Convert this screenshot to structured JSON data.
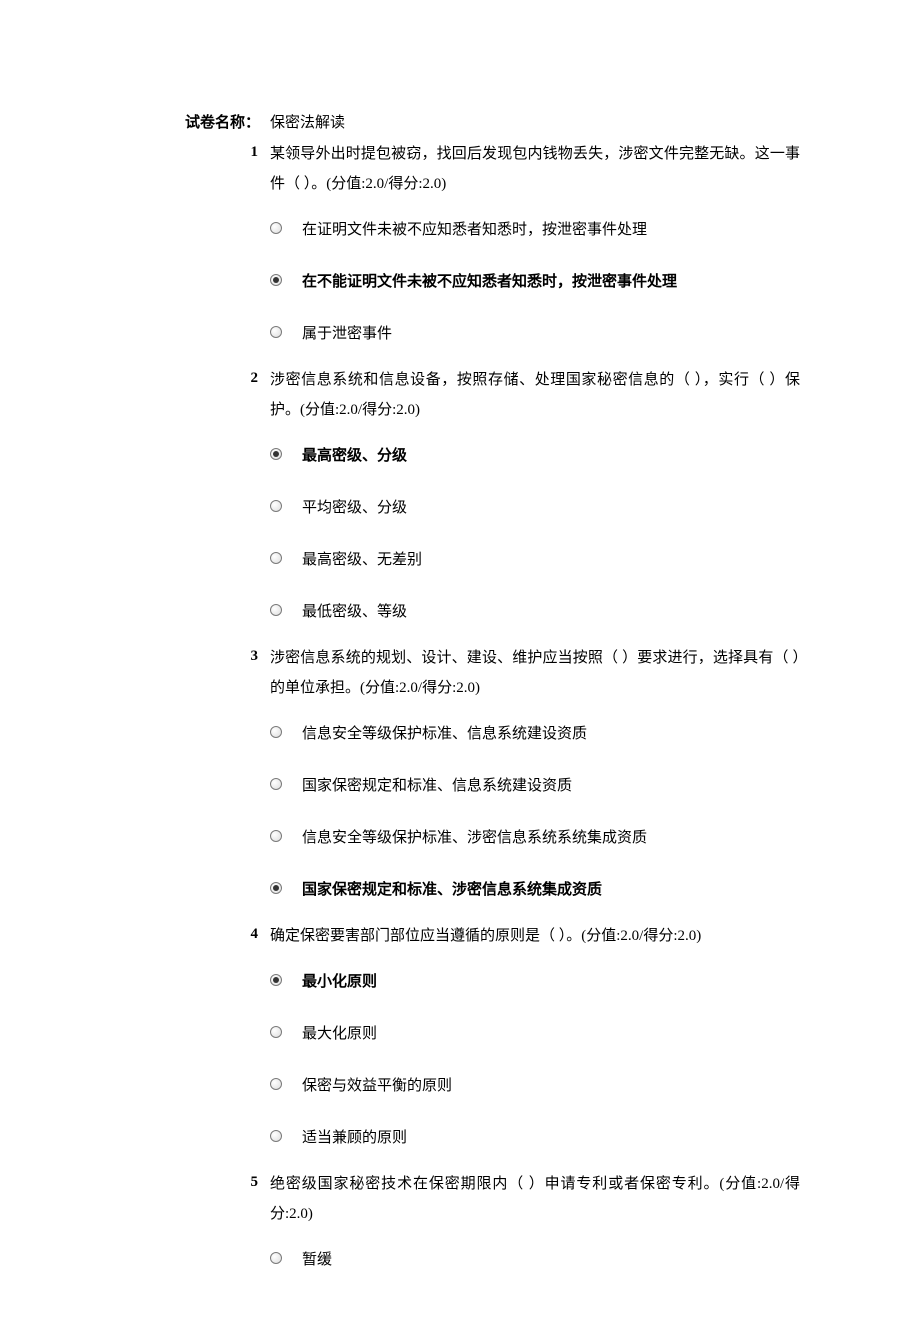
{
  "header": {
    "label": "试卷名称：",
    "title": "保密法解读"
  },
  "questions": [
    {
      "num": "1",
      "text": "某领导外出时提包被窃，找回后发现包内钱物丢失，涉密文件完整无缺。这一事件（ ）。(分值:2.0/得分:2.0)",
      "options": [
        {
          "text": "在证明文件未被不应知悉者知悉时，按泄密事件处理",
          "selected": false
        },
        {
          "text": "在不能证明文件未被不应知悉者知悉时，按泄密事件处理",
          "selected": true
        },
        {
          "text": "属于泄密事件",
          "selected": false
        }
      ]
    },
    {
      "num": "2",
      "text": "涉密信息系统和信息设备，按照存储、处理国家秘密信息的（ ），实行（ ）保护。(分值:2.0/得分:2.0)",
      "options": [
        {
          "text": "最高密级、分级",
          "selected": true
        },
        {
          "text": "平均密级、分级",
          "selected": false
        },
        {
          "text": "最高密级、无差别",
          "selected": false
        },
        {
          "text": "最低密级、等级",
          "selected": false
        }
      ]
    },
    {
      "num": "3",
      "text": "涉密信息系统的规划、设计、建设、维护应当按照（ ）要求进行，选择具有（ ）的单位承担。(分值:2.0/得分:2.0)",
      "options": [
        {
          "text": "信息安全等级保护标准、信息系统建设资质",
          "selected": false
        },
        {
          "text": "国家保密规定和标准、信息系统建设资质",
          "selected": false
        },
        {
          "text": "信息安全等级保护标准、涉密信息系统系统集成资质",
          "selected": false
        },
        {
          "text": "国家保密规定和标准、涉密信息系统集成资质",
          "selected": true
        }
      ]
    },
    {
      "num": "4",
      "text": "确定保密要害部门部位应当遵循的原则是（ ）。(分值:2.0/得分:2.0)",
      "options": [
        {
          "text": "最小化原则",
          "selected": true
        },
        {
          "text": "最大化原则",
          "selected": false
        },
        {
          "text": "保密与效益平衡的原则",
          "selected": false
        },
        {
          "text": "适当兼顾的原则",
          "selected": false
        }
      ]
    },
    {
      "num": "5",
      "text": "绝密级国家秘密技术在保密期限内（ ）申请专利或者保密专利。(分值:2.0/得分:2.0)",
      "options": [
        {
          "text": "暂缓",
          "selected": false
        }
      ]
    }
  ]
}
